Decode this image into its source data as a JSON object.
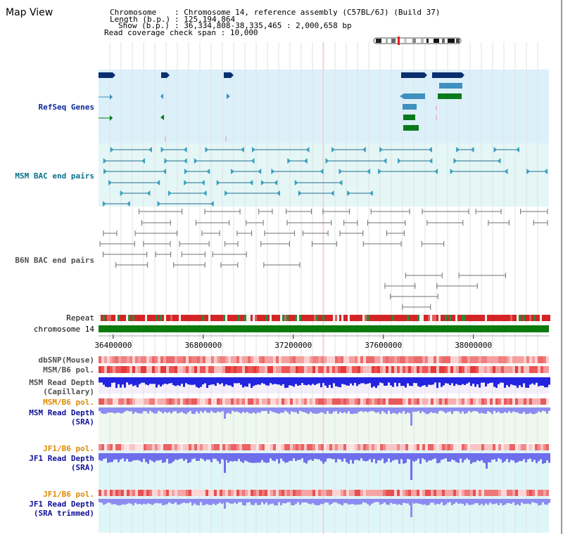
{
  "view_title": "Map View",
  "header": {
    "chromosome_key": "Chromosome",
    "chromosome_value": ": Chromosome 14, reference assembly (C57BL/6J) (Build 37)",
    "length_key": "Length (b.p.)",
    "length_value": ": 125,194,864",
    "show_key": "Show (b.p.)",
    "show_value": ": 36,334,808-38,335,465 : 2,000,658 bp",
    "coverage_key": "Read coverage check span",
    "coverage_value": ": 10,000"
  },
  "tracks": {
    "refseq": "RefSeq Genes",
    "msm_bac": "MSM BAC end pairs",
    "b6n_bac": "B6N BAC end pairs",
    "repeat": "Repeat",
    "chromosome": "chromosome 14",
    "dbsnp": "dbSNP(Mouse)",
    "msm_b6_pol_1": "MSM/B6 pol.",
    "msm_depth_cap_1": "MSM Read Depth",
    "msm_depth_cap_2": "(Capillary)",
    "msm_b6_pol_2": "MSM/B6 pol.",
    "msm_depth_sra_1": "MSM Read Depth",
    "msm_depth_sra_2": "(SRA)",
    "jf1_b6_pol_1": "JF1/B6 pol.",
    "jf1_depth_sra_1": "JF1 Read Depth",
    "jf1_depth_sra_2": "(SRA)",
    "jf1_b6_pol_2": "JF1/B6 pol.",
    "jf1_depth_trim_1": "JF1 Read Depth",
    "jf1_depth_trim_2": "(SRA trimmed)"
  },
  "axis": {
    "ticks": [
      {
        "bp": 36400000,
        "label": "36400000"
      },
      {
        "bp": 36800000,
        "label": "36800000"
      },
      {
        "bp": 37200000,
        "label": "37200000"
      },
      {
        "bp": 37600000,
        "label": "37600000"
      },
      {
        "bp": 38000000,
        "label": "38000000"
      }
    ],
    "start_bp": 36334808,
    "end_bp": 38335465
  },
  "colors": {
    "refseq_bg": "#dcf0fa",
    "msm_bg": "#e4f6f6",
    "gene_navy": "#0a2f6e",
    "gene_steel": "#3f8fbf",
    "gene_green": "#0b7a1a",
    "msm_line": "#1f6f8f",
    "b6n_line": "#707070",
    "chrom_green": "#0c7a0c",
    "depth_blue": "#2323e0",
    "depth_periwinkle": "#8c8cf0",
    "depth_light": "#6e6eec"
  }
}
